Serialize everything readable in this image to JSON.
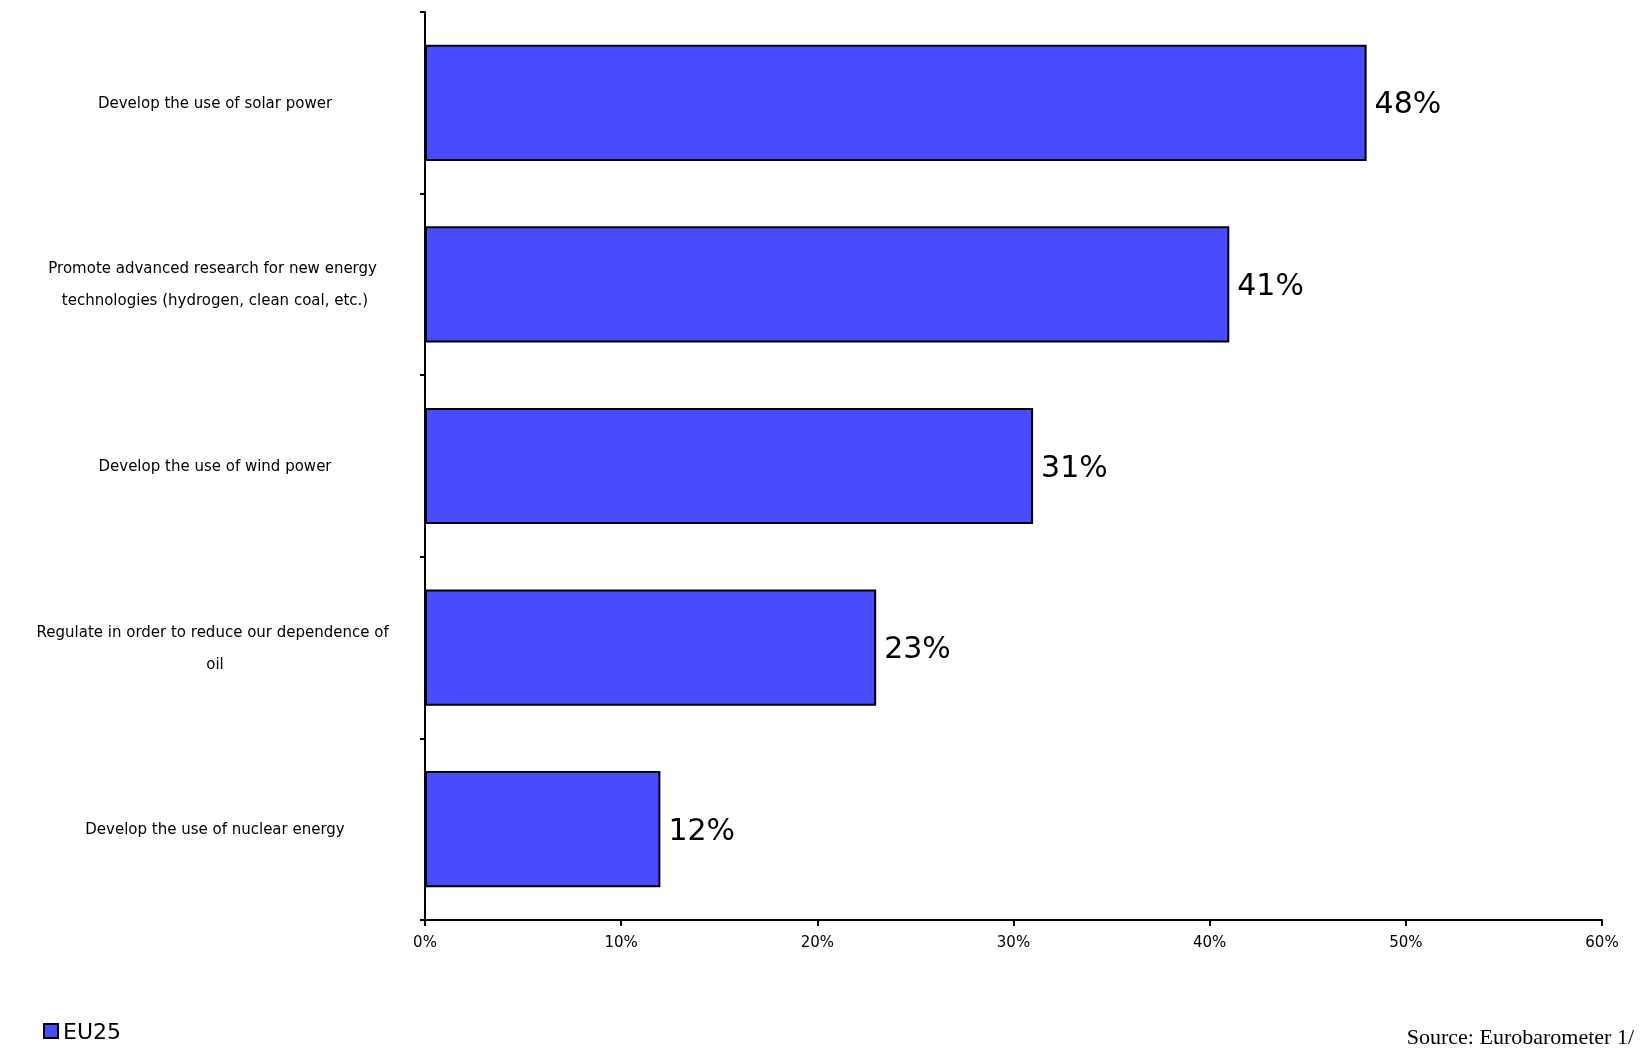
{
  "chart_data": {
    "type": "bar",
    "orientation": "horizontal",
    "categories": [
      "Develop the use of solar power",
      "Promote advanced research for new energy technologies (hydrogen, clean coal, etc.)",
      "Develop the use of wind power",
      "Regulate in order to reduce our dependence of oil",
      "Develop the use of nuclear energy"
    ],
    "series": [
      {
        "name": "EU25",
        "color": "#4a4aff",
        "values": [
          48,
          41,
          31,
          23,
          12
        ],
        "value_labels": [
          "48%",
          "41%",
          "31%",
          "23%",
          "12%"
        ]
      }
    ],
    "xlim": [
      0,
      60
    ],
    "xticks": [
      {
        "value": 0,
        "label": "0%"
      },
      {
        "value": 10,
        "label": "10%"
      },
      {
        "value": 20,
        "label": "20%"
      },
      {
        "value": 30,
        "label": "30%"
      },
      {
        "value": 40,
        "label": "40%"
      },
      {
        "value": 50,
        "label": "50%"
      },
      {
        "value": 60,
        "label": "60%"
      }
    ],
    "grid": false,
    "legend": "bottom left",
    "annotations": [
      "Source: Eurobarometer 1/"
    ]
  }
}
